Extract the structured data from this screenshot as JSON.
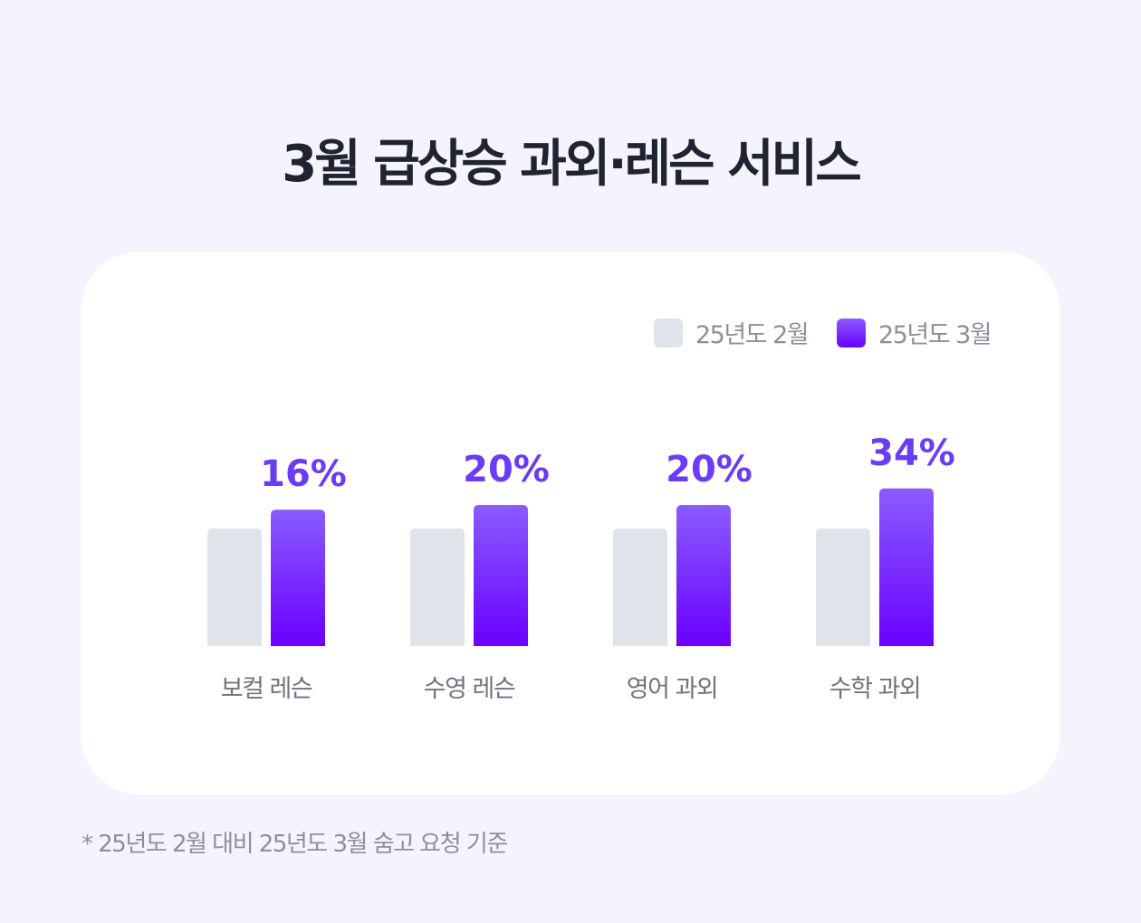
{
  "title": "3월 급상승 과외·레슨 서비스",
  "footnote": "* 25년도 2월 대비 25년도 3월 숨고 요청 기준",
  "chart_data": {
    "type": "bar",
    "categories": [
      "보컬 레슨",
      "수영 레슨",
      "영어 과외",
      "수학 과외"
    ],
    "series": [
      {
        "name": "25년도 2월",
        "values": [
          100,
          100,
          100,
          100
        ],
        "color": "#dfe4ea"
      },
      {
        "name": "25년도 3월",
        "values": [
          116,
          120,
          120,
          134
        ],
        "color": "#6a00ff"
      }
    ],
    "data_labels": [
      "16%",
      "20%",
      "20%",
      "34%"
    ],
    "data_label_color": "#6b3cf5",
    "legend_position": "top-right",
    "grid": false,
    "ylim": [
      0,
      134
    ]
  }
}
